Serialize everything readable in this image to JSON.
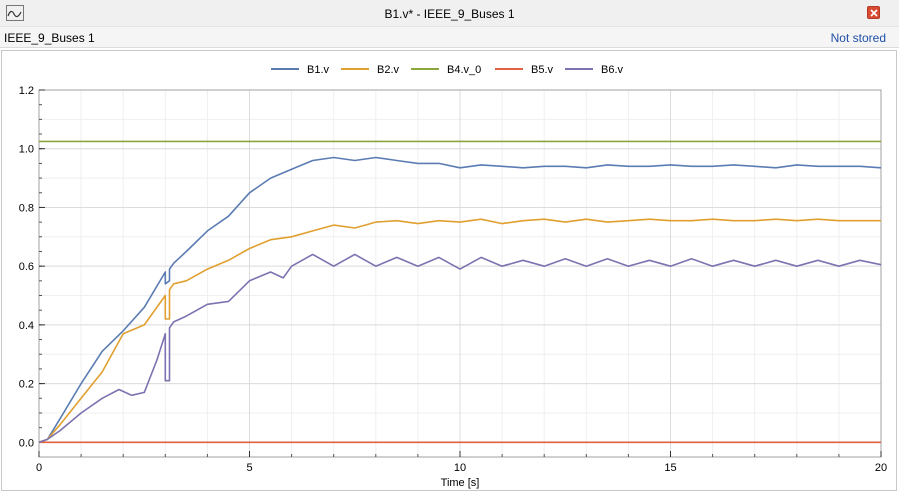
{
  "window": {
    "title": "B1.v* - IEEE_9_Buses 1",
    "icon": "plot-window-icon",
    "close_icon": "close-icon"
  },
  "infobar": {
    "model_name": "IEEE_9_Buses 1",
    "status": "Not stored",
    "status_color": "#1f4fa8"
  },
  "chart_data": {
    "type": "line",
    "xlabel": "Time [s]",
    "ylabel": "",
    "xlim": [
      0,
      20
    ],
    "ylim": [
      -0.05,
      1.2
    ],
    "xticks": [
      0,
      5,
      10,
      15,
      20
    ],
    "yticks": [
      0.0,
      0.2,
      0.4,
      0.6,
      0.8,
      1.0,
      1.2
    ],
    "xtick_labels": [
      "0",
      "5",
      "10",
      "15",
      "20"
    ],
    "ytick_labels": [
      "0.0",
      "0.2",
      "0.4",
      "0.6",
      "0.8",
      "1.0",
      "1.2"
    ],
    "grid": true,
    "legend_position": "top-center",
    "series": [
      {
        "name": "B1.v",
        "color": "#5b7cb3",
        "x": [
          0,
          0.2,
          0.5,
          1.0,
          1.5,
          2.0,
          2.5,
          3.0,
          3.0,
          3.1,
          3.1,
          3.2,
          3.5,
          4.0,
          4.5,
          5.0,
          5.5,
          6.0,
          6.5,
          7.0,
          7.5,
          8.0,
          8.5,
          9.0,
          9.5,
          10.0,
          10.5,
          11.0,
          11.5,
          12.0,
          12.5,
          13.0,
          13.5,
          14.0,
          14.5,
          15.0,
          15.5,
          16.0,
          16.5,
          17.0,
          17.5,
          18.0,
          18.5,
          19.0,
          19.5,
          20.0
        ],
        "y": [
          0.0,
          0.01,
          0.08,
          0.2,
          0.31,
          0.38,
          0.46,
          0.58,
          0.54,
          0.55,
          0.59,
          0.61,
          0.65,
          0.72,
          0.77,
          0.85,
          0.9,
          0.93,
          0.96,
          0.97,
          0.96,
          0.97,
          0.96,
          0.95,
          0.95,
          0.935,
          0.945,
          0.94,
          0.935,
          0.94,
          0.94,
          0.935,
          0.945,
          0.94,
          0.94,
          0.945,
          0.94,
          0.94,
          0.945,
          0.94,
          0.935,
          0.945,
          0.94,
          0.94,
          0.94,
          0.935
        ]
      },
      {
        "name": "B2.v",
        "color": "#e0a030",
        "x": [
          0,
          0.2,
          0.5,
          1.0,
          1.5,
          2.0,
          2.5,
          3.0,
          3.0,
          3.1,
          3.1,
          3.2,
          3.5,
          4.0,
          4.5,
          5.0,
          5.5,
          6.0,
          6.5,
          7.0,
          7.5,
          8.0,
          8.5,
          9.0,
          9.5,
          10.0,
          10.5,
          11.0,
          11.5,
          12.0,
          12.5,
          13.0,
          13.5,
          14.0,
          14.5,
          15.0,
          15.5,
          16.0,
          16.5,
          17.0,
          17.5,
          18.0,
          18.5,
          19.0,
          19.5,
          20.0
        ],
        "y": [
          0.0,
          0.01,
          0.06,
          0.15,
          0.24,
          0.37,
          0.4,
          0.5,
          0.42,
          0.42,
          0.52,
          0.54,
          0.55,
          0.59,
          0.62,
          0.66,
          0.69,
          0.7,
          0.72,
          0.74,
          0.73,
          0.75,
          0.755,
          0.745,
          0.755,
          0.75,
          0.76,
          0.745,
          0.755,
          0.76,
          0.75,
          0.76,
          0.75,
          0.755,
          0.76,
          0.755,
          0.755,
          0.76,
          0.755,
          0.755,
          0.76,
          0.755,
          0.76,
          0.755,
          0.755,
          0.755
        ]
      },
      {
        "name": "B4.v_0",
        "color": "#8ba63a",
        "x": [
          0,
          20
        ],
        "y": [
          1.025,
          1.025
        ]
      },
      {
        "name": "B5.v",
        "color": "#e06040",
        "x": [
          0,
          20
        ],
        "y": [
          0.0,
          0.0
        ]
      },
      {
        "name": "B6.v",
        "color": "#7c73b0",
        "x": [
          0,
          0.2,
          0.5,
          1.0,
          1.5,
          1.9,
          2.2,
          2.5,
          2.8,
          3.0,
          3.0,
          3.1,
          3.1,
          3.2,
          3.5,
          4.0,
          4.5,
          5.0,
          5.5,
          5.8,
          6.0,
          6.5,
          7.0,
          7.5,
          8.0,
          8.5,
          9.0,
          9.5,
          10.0,
          10.5,
          11.0,
          11.5,
          12.0,
          12.5,
          13.0,
          13.5,
          14.0,
          14.5,
          15.0,
          15.5,
          16.0,
          16.5,
          17.0,
          17.5,
          18.0,
          18.5,
          19.0,
          19.5,
          20.0
        ],
        "y": [
          0.0,
          0.01,
          0.04,
          0.1,
          0.15,
          0.18,
          0.16,
          0.17,
          0.28,
          0.37,
          0.21,
          0.21,
          0.39,
          0.41,
          0.43,
          0.47,
          0.48,
          0.55,
          0.58,
          0.56,
          0.6,
          0.64,
          0.6,
          0.64,
          0.6,
          0.63,
          0.6,
          0.63,
          0.59,
          0.63,
          0.6,
          0.62,
          0.6,
          0.625,
          0.6,
          0.625,
          0.6,
          0.62,
          0.6,
          0.625,
          0.6,
          0.62,
          0.6,
          0.62,
          0.6,
          0.62,
          0.6,
          0.62,
          0.605
        ]
      }
    ]
  }
}
